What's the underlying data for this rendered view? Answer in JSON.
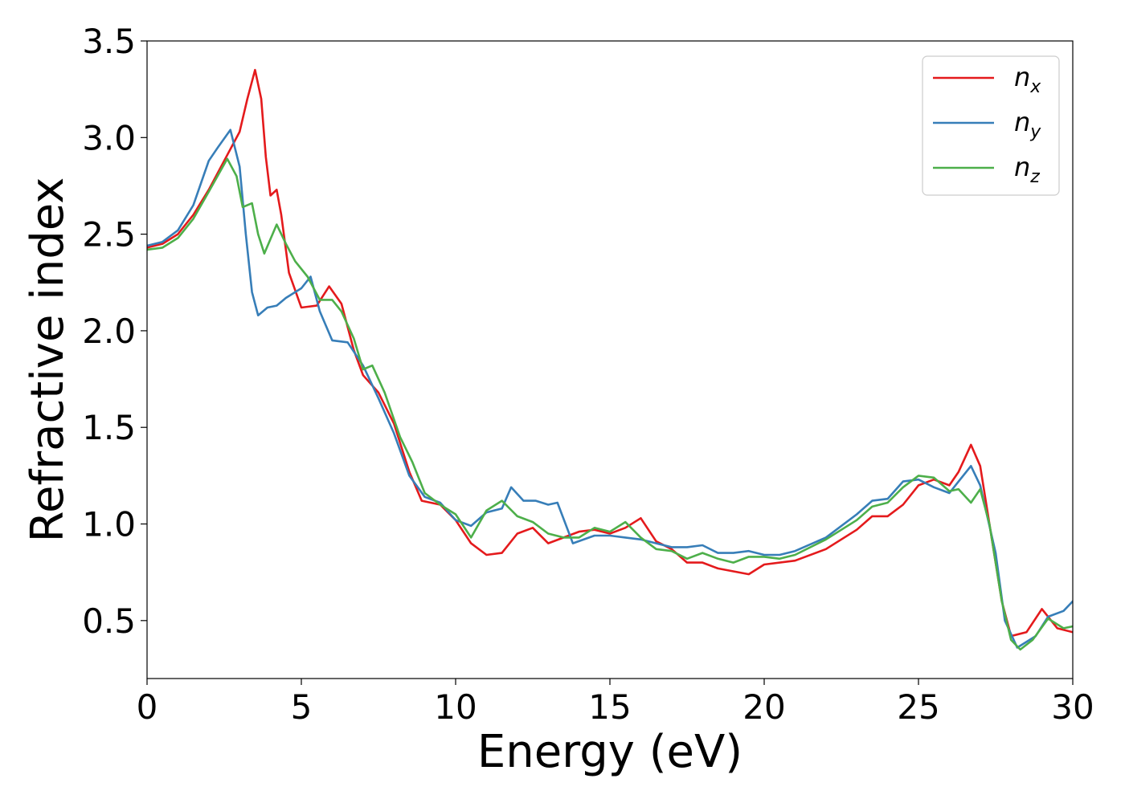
{
  "chart_data": {
    "type": "line",
    "title": "",
    "xlabel": "Energy (eV)",
    "ylabel": "Refractive index",
    "xlim": [
      0,
      30
    ],
    "ylim": [
      0.2,
      3.5
    ],
    "xticks": [
      0,
      5,
      10,
      15,
      20,
      25,
      30
    ],
    "yticks": [
      0.5,
      1.0,
      1.5,
      2.0,
      2.5,
      3.0,
      3.5
    ],
    "xtick_labels": [
      "0",
      "5",
      "10",
      "15",
      "20",
      "25",
      "30"
    ],
    "ytick_labels": [
      "0.5",
      "1.0",
      "1.5",
      "2.0",
      "2.5",
      "3.0",
      "3.5"
    ],
    "grid": false,
    "legend_position": "top-right",
    "series": [
      {
        "name": "n",
        "subscript": "x",
        "color": "#e41a1c",
        "points": [
          [
            0,
            2.43
          ],
          [
            0.5,
            2.45
          ],
          [
            1,
            2.5
          ],
          [
            1.5,
            2.6
          ],
          [
            2,
            2.73
          ],
          [
            2.5,
            2.88
          ],
          [
            3,
            3.03
          ],
          [
            3.25,
            3.2
          ],
          [
            3.5,
            3.35
          ],
          [
            3.7,
            3.2
          ],
          [
            3.85,
            2.9
          ],
          [
            4,
            2.7
          ],
          [
            4.2,
            2.73
          ],
          [
            4.35,
            2.6
          ],
          [
            4.6,
            2.3
          ],
          [
            5,
            2.12
          ],
          [
            5.5,
            2.13
          ],
          [
            5.9,
            2.23
          ],
          [
            6.3,
            2.14
          ],
          [
            6.7,
            1.9
          ],
          [
            7,
            1.77
          ],
          [
            7.5,
            1.68
          ],
          [
            8,
            1.52
          ],
          [
            8.5,
            1.27
          ],
          [
            8.9,
            1.12
          ],
          [
            9.5,
            1.1
          ],
          [
            10,
            1.02
          ],
          [
            10.5,
            0.9
          ],
          [
            11,
            0.84
          ],
          [
            11.5,
            0.85
          ],
          [
            12,
            0.95
          ],
          [
            12.5,
            0.98
          ],
          [
            13,
            0.9
          ],
          [
            13.5,
            0.93
          ],
          [
            14,
            0.96
          ],
          [
            14.5,
            0.97
          ],
          [
            15,
            0.95
          ],
          [
            15.5,
            0.98
          ],
          [
            16,
            1.03
          ],
          [
            16.5,
            0.91
          ],
          [
            17,
            0.87
          ],
          [
            17.5,
            0.8
          ],
          [
            18,
            0.8
          ],
          [
            18.5,
            0.77
          ],
          [
            19.5,
            0.74
          ],
          [
            20,
            0.79
          ],
          [
            21,
            0.81
          ],
          [
            22,
            0.87
          ],
          [
            23,
            0.97
          ],
          [
            23.5,
            1.04
          ],
          [
            24,
            1.04
          ],
          [
            24.5,
            1.1
          ],
          [
            25,
            1.2
          ],
          [
            25.5,
            1.23
          ],
          [
            26,
            1.2
          ],
          [
            26.3,
            1.27
          ],
          [
            26.7,
            1.41
          ],
          [
            27,
            1.3
          ],
          [
            27.3,
            1.0
          ],
          [
            27.7,
            0.6
          ],
          [
            28,
            0.42
          ],
          [
            28.5,
            0.44
          ],
          [
            29,
            0.56
          ],
          [
            29.5,
            0.46
          ],
          [
            30,
            0.44
          ]
        ]
      },
      {
        "name": "n",
        "subscript": "y",
        "color": "#377eb8",
        "points": [
          [
            0,
            2.44
          ],
          [
            0.5,
            2.46
          ],
          [
            1,
            2.52
          ],
          [
            1.5,
            2.65
          ],
          [
            2,
            2.88
          ],
          [
            2.3,
            2.95
          ],
          [
            2.7,
            3.04
          ],
          [
            3,
            2.85
          ],
          [
            3.2,
            2.5
          ],
          [
            3.4,
            2.2
          ],
          [
            3.6,
            2.08
          ],
          [
            3.9,
            2.12
          ],
          [
            4.2,
            2.13
          ],
          [
            4.5,
            2.17
          ],
          [
            5,
            2.22
          ],
          [
            5.3,
            2.28
          ],
          [
            5.6,
            2.1
          ],
          [
            6,
            1.95
          ],
          [
            6.5,
            1.94
          ],
          [
            7,
            1.82
          ],
          [
            7.5,
            1.65
          ],
          [
            8,
            1.47
          ],
          [
            8.5,
            1.25
          ],
          [
            9,
            1.14
          ],
          [
            9.5,
            1.11
          ],
          [
            10,
            1.02
          ],
          [
            10.5,
            0.99
          ],
          [
            11,
            1.06
          ],
          [
            11.5,
            1.08
          ],
          [
            11.8,
            1.19
          ],
          [
            12.2,
            1.12
          ],
          [
            12.6,
            1.12
          ],
          [
            13,
            1.1
          ],
          [
            13.3,
            1.11
          ],
          [
            13.8,
            0.9
          ],
          [
            14.5,
            0.94
          ],
          [
            15,
            0.94
          ],
          [
            15.5,
            0.93
          ],
          [
            16,
            0.92
          ],
          [
            16.5,
            0.9
          ],
          [
            17,
            0.88
          ],
          [
            17.5,
            0.88
          ],
          [
            18,
            0.89
          ],
          [
            18.5,
            0.85
          ],
          [
            19,
            0.85
          ],
          [
            19.5,
            0.86
          ],
          [
            20,
            0.84
          ],
          [
            20.5,
            0.84
          ],
          [
            21,
            0.86
          ],
          [
            22,
            0.93
          ],
          [
            23,
            1.05
          ],
          [
            23.5,
            1.12
          ],
          [
            24,
            1.13
          ],
          [
            24.5,
            1.22
          ],
          [
            25,
            1.23
          ],
          [
            25.5,
            1.19
          ],
          [
            26,
            1.16
          ],
          [
            26.3,
            1.22
          ],
          [
            26.7,
            1.3
          ],
          [
            27,
            1.2
          ],
          [
            27.5,
            0.85
          ],
          [
            27.8,
            0.5
          ],
          [
            28.2,
            0.36
          ],
          [
            28.8,
            0.42
          ],
          [
            29.2,
            0.52
          ],
          [
            29.7,
            0.55
          ],
          [
            30,
            0.6
          ]
        ]
      },
      {
        "name": "n",
        "subscript": "z",
        "color": "#4daf4a",
        "points": [
          [
            0,
            2.42
          ],
          [
            0.5,
            2.43
          ],
          [
            1,
            2.48
          ],
          [
            1.5,
            2.58
          ],
          [
            2,
            2.72
          ],
          [
            2.6,
            2.89
          ],
          [
            2.9,
            2.8
          ],
          [
            3.1,
            2.64
          ],
          [
            3.4,
            2.66
          ],
          [
            3.6,
            2.5
          ],
          [
            3.8,
            2.4
          ],
          [
            4.2,
            2.55
          ],
          [
            4.5,
            2.45
          ],
          [
            4.8,
            2.36
          ],
          [
            5.2,
            2.28
          ],
          [
            5.6,
            2.16
          ],
          [
            6,
            2.16
          ],
          [
            6.3,
            2.1
          ],
          [
            6.7,
            1.96
          ],
          [
            7,
            1.8
          ],
          [
            7.3,
            1.82
          ],
          [
            7.7,
            1.68
          ],
          [
            8.2,
            1.45
          ],
          [
            8.6,
            1.32
          ],
          [
            9,
            1.16
          ],
          [
            9.5,
            1.1
          ],
          [
            10,
            1.05
          ],
          [
            10.5,
            0.93
          ],
          [
            11,
            1.07
          ],
          [
            11.5,
            1.12
          ],
          [
            12,
            1.04
          ],
          [
            12.5,
            1.01
          ],
          [
            13,
            0.95
          ],
          [
            13.5,
            0.93
          ],
          [
            14,
            0.93
          ],
          [
            14.5,
            0.98
          ],
          [
            15,
            0.96
          ],
          [
            15.5,
            1.01
          ],
          [
            16,
            0.93
          ],
          [
            16.5,
            0.87
          ],
          [
            17,
            0.86
          ],
          [
            17.5,
            0.82
          ],
          [
            18,
            0.85
          ],
          [
            18.5,
            0.82
          ],
          [
            19,
            0.8
          ],
          [
            19.5,
            0.83
          ],
          [
            20,
            0.83
          ],
          [
            20.5,
            0.82
          ],
          [
            21,
            0.84
          ],
          [
            22,
            0.92
          ],
          [
            23,
            1.02
          ],
          [
            23.5,
            1.09
          ],
          [
            24,
            1.11
          ],
          [
            24.5,
            1.19
          ],
          [
            25,
            1.25
          ],
          [
            25.5,
            1.24
          ],
          [
            26,
            1.17
          ],
          [
            26.3,
            1.18
          ],
          [
            26.7,
            1.11
          ],
          [
            27,
            1.18
          ],
          [
            27.3,
            1.0
          ],
          [
            27.7,
            0.6
          ],
          [
            28,
            0.4
          ],
          [
            28.3,
            0.35
          ],
          [
            28.7,
            0.4
          ],
          [
            29.2,
            0.51
          ],
          [
            29.7,
            0.46
          ],
          [
            30,
            0.47
          ]
        ]
      }
    ]
  }
}
